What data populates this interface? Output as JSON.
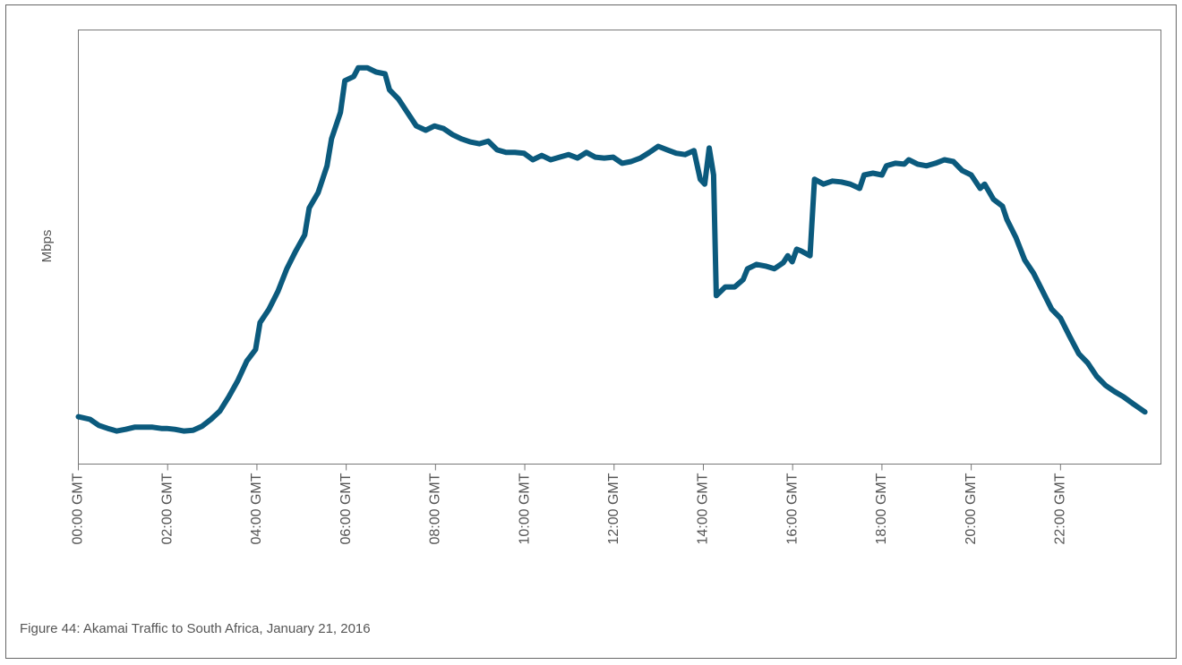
{
  "chart_data": {
    "type": "line",
    "caption": "Figure 44: Akamai Traffic to South Africa, January 21, 2016",
    "ylabel": "Mbps",
    "color": "#0b5a7d",
    "xlim": [
      0,
      24.25
    ],
    "ylim": [
      0,
      100
    ],
    "xticks": [
      {
        "value": 0,
        "label": "00:00 GMT"
      },
      {
        "value": 2,
        "label": "02:00 GMT"
      },
      {
        "value": 4,
        "label": "04:00 GMT"
      },
      {
        "value": 6,
        "label": "06:00 GMT"
      },
      {
        "value": 8,
        "label": "08:00 GMT"
      },
      {
        "value": 10,
        "label": "10:00 GMT"
      },
      {
        "value": 12,
        "label": "12:00 GMT"
      },
      {
        "value": 14,
        "label": "14:00 GMT"
      },
      {
        "value": 16,
        "label": "16:00 GMT"
      },
      {
        "value": 18,
        "label": "18:00 GMT"
      },
      {
        "value": 20,
        "label": "20:00 GMT"
      },
      {
        "value": 22,
        "label": "22:00 GMT"
      }
    ],
    "x": [
      0,
      0.26,
      0.46,
      0.66,
      0.86,
      1.06,
      1.26,
      1.46,
      1.66,
      1.86,
      1.98,
      2.16,
      2.36,
      2.57,
      2.77,
      2.97,
      3.17,
      3.37,
      3.57,
      3.77,
      3.97,
      4.07,
      4.27,
      4.47,
      4.67,
      4.87,
      5.07,
      5.17,
      5.37,
      5.57,
      5.67,
      5.87,
      5.97,
      6.17,
      6.27,
      6.47,
      6.67,
      6.87,
      6.97,
      7.17,
      7.37,
      7.57,
      7.78,
      7.98,
      8.18,
      8.38,
      8.58,
      8.78,
      8.98,
      9.18,
      9.38,
      9.58,
      9.78,
      9.98,
      10.18,
      10.38,
      10.58,
      10.78,
      10.98,
      11.18,
      11.38,
      11.58,
      11.78,
      11.98,
      12.18,
      12.38,
      12.59,
      12.79,
      12.99,
      13.19,
      13.39,
      13.59,
      13.79,
      13.93,
      14.03,
      14.13,
      14.23,
      14.29,
      14.49,
      14.7,
      14.89,
      14.99,
      15.19,
      15.39,
      15.59,
      15.79,
      15.89,
      15.99,
      16.09,
      16.19,
      16.39,
      16.49,
      16.69,
      16.89,
      17.09,
      17.29,
      17.5,
      17.6,
      17.8,
      18.0,
      18.1,
      18.3,
      18.5,
      18.6,
      18.8,
      19.0,
      19.2,
      19.4,
      19.6,
      19.8,
      20.0,
      20.2,
      20.3,
      20.5,
      20.7,
      20.8,
      21.0,
      21.2,
      21.4,
      21.6,
      21.8,
      22.0,
      22.2,
      22.41,
      22.61,
      22.81,
      23.01,
      23.21,
      23.41,
      23.61,
      23.89
    ],
    "values": [
      10.9,
      10.3,
      8.9,
      8.2,
      7.6,
      8.0,
      8.5,
      8.5,
      8.5,
      8.2,
      8.2,
      8.0,
      7.6,
      7.8,
      8.7,
      10.3,
      12.2,
      15.5,
      19.2,
      23.7,
      26.4,
      32.6,
      35.7,
      39.8,
      45.0,
      49.1,
      52.8,
      59.0,
      62.5,
      68.7,
      74.9,
      81.0,
      88.3,
      89.3,
      91.3,
      91.3,
      90.3,
      89.9,
      86.2,
      84.1,
      81.0,
      77.9,
      76.9,
      77.9,
      77.3,
      75.9,
      74.9,
      74.2,
      73.8,
      74.4,
      72.4,
      71.8,
      71.8,
      71.6,
      70.1,
      71.1,
      70.1,
      70.7,
      71.3,
      70.5,
      71.8,
      70.7,
      70.5,
      70.7,
      69.3,
      69.7,
      70.5,
      71.8,
      73.2,
      72.4,
      71.6,
      71.3,
      72.2,
      65.6,
      64.5,
      72.8,
      66.6,
      38.8,
      40.8,
      40.8,
      42.5,
      45.0,
      46.0,
      45.6,
      45.0,
      46.4,
      48.0,
      46.6,
      49.5,
      49.1,
      48.0,
      65.6,
      64.5,
      65.2,
      65.0,
      64.5,
      63.5,
      66.6,
      67.0,
      66.6,
      68.7,
      69.3,
      69.1,
      70.1,
      69.1,
      68.7,
      69.3,
      70.1,
      69.7,
      67.6,
      66.6,
      63.5,
      64.5,
      61.0,
      59.4,
      56.3,
      52.2,
      47.0,
      43.9,
      39.8,
      35.7,
      33.6,
      29.5,
      25.4,
      23.3,
      20.2,
      18.1,
      16.7,
      15.5,
      14.0,
      12.0
    ]
  }
}
